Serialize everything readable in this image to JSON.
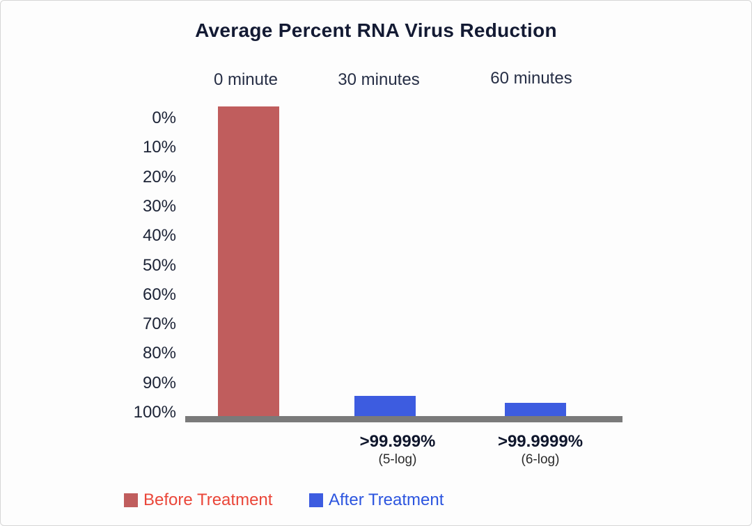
{
  "chart_data": {
    "type": "bar",
    "title": "Average Percent RNA Virus Reduction",
    "categories": [
      "0 minute",
      "30 minutes",
      "60 minutes"
    ],
    "y_ticks": [
      "0%",
      "10%",
      "20%",
      "30%",
      "40%",
      "50%",
      "60%",
      "70%",
      "80%",
      "90%",
      "100%"
    ],
    "y_axis": {
      "min": 0,
      "max": 100,
      "unit": "%",
      "inverted": true,
      "grid": false
    },
    "bars": [
      {
        "category": "0 minute",
        "series": "Before Treatment",
        "display_top_pct": -6,
        "color": "#c05d5d"
      },
      {
        "category": "30 minutes",
        "series": "After Treatment",
        "value_label": ">99.999%",
        "log_label": "(5-log)",
        "display_top_pct": 92.4,
        "color": "#3d5ce0"
      },
      {
        "category": "60 minutes",
        "series": "After Treatment",
        "value_label": ">99.9999%",
        "log_label": "(6-log)",
        "display_top_pct": 94.8,
        "color": "#3d5ce0"
      }
    ],
    "annotations": [
      {
        "category": "30 minutes",
        "value": ">99.999%",
        "log": "(5-log)"
      },
      {
        "category": "60 minutes",
        "value": ">99.9999%",
        "log": "(6-log)"
      }
    ],
    "legend": {
      "position": "bottom-left",
      "items": [
        {
          "label": "Before Treatment",
          "swatch_color": "#c05d5d",
          "text_color": "#ea4639"
        },
        {
          "label": "After Treatment",
          "swatch_color": "#3d5ce0",
          "text_color": "#2c55df"
        }
      ]
    },
    "colors": {
      "baseline": "#7a7a7a",
      "title": "#131a33",
      "axis_text": "#1c2336",
      "background": "#fdfdfd"
    }
  }
}
